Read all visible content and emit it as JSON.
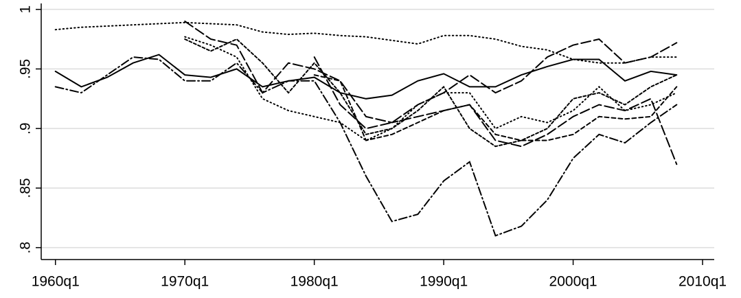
{
  "chart_data": {
    "type": "line",
    "x": [
      1960,
      1962,
      1964,
      1966,
      1968,
      1970,
      1972,
      1974,
      1976,
      1978,
      1980,
      1982,
      1984,
      1986,
      1988,
      1990,
      1992,
      1994,
      1996,
      1998,
      2000,
      2002,
      2004,
      2006,
      2008
    ],
    "series": [
      {
        "color": "#000000",
        "dash": "dot",
        "values": [
          0.983,
          0.985,
          0.986,
          0.987,
          0.988,
          0.989,
          0.988,
          0.987,
          0.981,
          0.979,
          0.98,
          0.978,
          0.977,
          0.974,
          0.971,
          0.978,
          0.978,
          0.975,
          0.969,
          0.966,
          0.958,
          0.955,
          0.955,
          0.96,
          0.96
        ]
      },
      {
        "color": "#000000",
        "dash": "solid",
        "values": [
          0.948,
          0.935,
          0.943,
          0.955,
          0.962,
          0.945,
          0.943,
          0.95,
          0.935,
          0.94,
          0.943,
          0.93,
          0.925,
          0.928,
          0.94,
          0.946,
          0.935,
          0.935,
          0.945,
          0.952,
          0.958,
          0.958,
          0.94,
          0.948,
          0.945
        ]
      },
      {
        "color": "#000000",
        "dash": "dashdot",
        "values": [
          0.935,
          0.93,
          0.945,
          0.96,
          0.958,
          0.94,
          0.94,
          0.955,
          0.93,
          0.94,
          0.94,
          0.905,
          0.86,
          0.822,
          0.828,
          0.856,
          0.872,
          0.81,
          0.818,
          0.84,
          0.875,
          0.895,
          0.888,
          0.905,
          0.92
        ]
      },
      {
        "color": "#000000",
        "dash": "longdash",
        "values": [
          null,
          null,
          null,
          null,
          null,
          0.99,
          0.975,
          0.97,
          0.93,
          0.955,
          0.95,
          0.94,
          0.91,
          0.905,
          0.91,
          0.915,
          0.92,
          0.89,
          0.885,
          0.895,
          0.91,
          0.92,
          0.915,
          0.925,
          0.87
        ]
      },
      {
        "color": "#000000",
        "dash": "shortdash",
        "values": [
          null,
          null,
          null,
          null,
          null,
          0.975,
          0.965,
          0.975,
          0.955,
          0.93,
          0.955,
          0.93,
          0.895,
          0.9,
          0.915,
          0.935,
          0.9,
          0.885,
          0.89,
          0.9,
          0.925,
          0.93,
          0.92,
          0.935,
          0.945
        ]
      },
      {
        "color": "#000000",
        "dash": "dot",
        "values": [
          null,
          null,
          null,
          null,
          null,
          0.977,
          0.97,
          0.96,
          0.925,
          0.915,
          0.91,
          0.905,
          0.89,
          0.9,
          0.92,
          0.93,
          0.93,
          0.9,
          0.91,
          0.905,
          0.915,
          0.935,
          0.915,
          0.92,
          0.93
        ]
      },
      {
        "color": "#000000",
        "dash": "longdash",
        "values": [
          null,
          null,
          null,
          null,
          null,
          null,
          null,
          null,
          null,
          null,
          0.96,
          0.92,
          0.9,
          0.905,
          0.92,
          0.93,
          0.945,
          0.93,
          0.94,
          0.96,
          0.97,
          0.975,
          0.955,
          0.96,
          0.972
        ]
      },
      {
        "color": "#000000",
        "dash": "dash",
        "values": [
          null,
          null,
          null,
          null,
          null,
          null,
          null,
          null,
          null,
          null,
          0.945,
          0.94,
          0.89,
          0.895,
          0.905,
          0.915,
          0.92,
          0.895,
          0.89,
          0.89,
          0.895,
          0.91,
          0.908,
          0.91,
          0.935
        ]
      }
    ],
    "xlim": [
      1958.9,
      2010.9
    ],
    "xticks": [
      {
        "value": 1960,
        "label": "1960q1"
      },
      {
        "value": 1970,
        "label": "1970q1"
      },
      {
        "value": 1980,
        "label": "1980q1"
      },
      {
        "value": 1990,
        "label": "1990q1"
      },
      {
        "value": 2000,
        "label": "2000q1"
      },
      {
        "value": 2010,
        "label": "2010q1"
      }
    ],
    "ylim": [
      0.79,
      1.005
    ],
    "yticks": [
      {
        "value": 0.8,
        "label": ".8"
      },
      {
        "value": 0.85,
        "label": ".85"
      },
      {
        "value": 0.9,
        "label": ".9"
      },
      {
        "value": 0.95,
        "label": ".95"
      },
      1
    ],
    "grid": true
  }
}
